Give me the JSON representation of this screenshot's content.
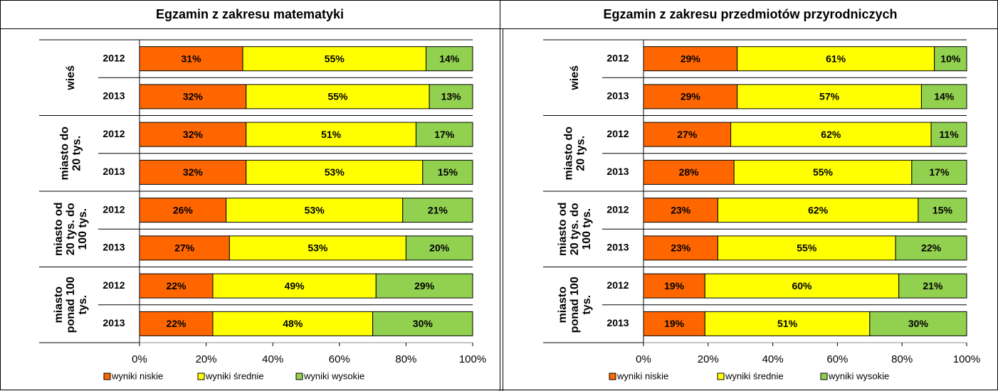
{
  "chart_data": [
    {
      "type": "bar",
      "title": "Egzamin z zakresu matematyki",
      "groups": [
        [
          "wieś"
        ],
        [
          "miasto do",
          "20 tys."
        ],
        [
          "miasto od",
          "20 tys. do",
          "100 tys."
        ],
        [
          "miasto",
          "ponad 100",
          "tys."
        ]
      ],
      "categories": [
        "2012",
        "2013",
        "2012",
        "2013",
        "2012",
        "2013",
        "2012",
        "2013"
      ],
      "series": [
        {
          "name": "wyniki niskie",
          "color": "#ff6600",
          "values": [
            31,
            32,
            32,
            32,
            26,
            27,
            22,
            22
          ],
          "value_labels": [
            "31%",
            "32%",
            "32%",
            "32%",
            "26%",
            "27%",
            "22%",
            "22%"
          ]
        },
        {
          "name": "wyniki średnie",
          "color": "#ffff00",
          "values": [
            55,
            55,
            51,
            53,
            53,
            53,
            49,
            48
          ],
          "value_labels": [
            "55%",
            "55%",
            "51%",
            "53%",
            "53%",
            "53%",
            "49%",
            "48%"
          ]
        },
        {
          "name": "wyniki wysokie",
          "color": "#92d050",
          "values": [
            14,
            13,
            17,
            15,
            21,
            20,
            29,
            30
          ],
          "value_labels": [
            "14%",
            "13%",
            "17%",
            "15%",
            "21%",
            "20%",
            "29%",
            "30%"
          ]
        }
      ],
      "xlim": [
        0,
        100
      ],
      "xticks": [
        {
          "value": 0,
          "label": "0%"
        },
        {
          "value": 20,
          "label": "20%"
        },
        {
          "value": 40,
          "label": "40%"
        },
        {
          "value": 60,
          "label": "60%"
        },
        {
          "value": 80,
          "label": "80%"
        },
        {
          "value": 100,
          "label": "100%"
        }
      ]
    },
    {
      "type": "bar",
      "title": "Egzamin z zakresu przedmiotów przyrodniczych",
      "groups": [
        [
          "wieś"
        ],
        [
          "miasto do",
          "20 tys."
        ],
        [
          "miasto od",
          "20 tys. do",
          "100 tys."
        ],
        [
          "miasto",
          "ponad 100",
          "tys."
        ]
      ],
      "categories": [
        "2012",
        "2013",
        "2012",
        "2013",
        "2012",
        "2013",
        "2012",
        "2013"
      ],
      "series": [
        {
          "name": "wyniki niskie",
          "color": "#ff6600",
          "values": [
            29,
            29,
            27,
            28,
            23,
            23,
            19,
            19
          ],
          "value_labels": [
            "29%",
            "29%",
            "27%",
            "28%",
            "23%",
            "23%",
            "19%",
            "19%"
          ]
        },
        {
          "name": "wyniki średnie",
          "color": "#ffff00",
          "values": [
            61,
            57,
            62,
            55,
            62,
            55,
            60,
            51
          ],
          "value_labels": [
            "61%",
            "57%",
            "62%",
            "55%",
            "62%",
            "55%",
            "60%",
            "51%"
          ]
        },
        {
          "name": "wyniki wysokie",
          "color": "#92d050",
          "values": [
            10,
            14,
            11,
            17,
            15,
            22,
            21,
            30
          ],
          "value_labels": [
            "10%",
            "14%",
            "11%",
            "17%",
            "15%",
            "22%",
            "21%",
            "30%"
          ]
        }
      ],
      "xlim": [
        0,
        100
      ],
      "xticks": [
        {
          "value": 0,
          "label": "0%"
        },
        {
          "value": 20,
          "label": "20%"
        },
        {
          "value": 40,
          "label": "40%"
        },
        {
          "value": 60,
          "label": "60%"
        },
        {
          "value": 80,
          "label": "80%"
        },
        {
          "value": 100,
          "label": "100%"
        }
      ]
    }
  ]
}
